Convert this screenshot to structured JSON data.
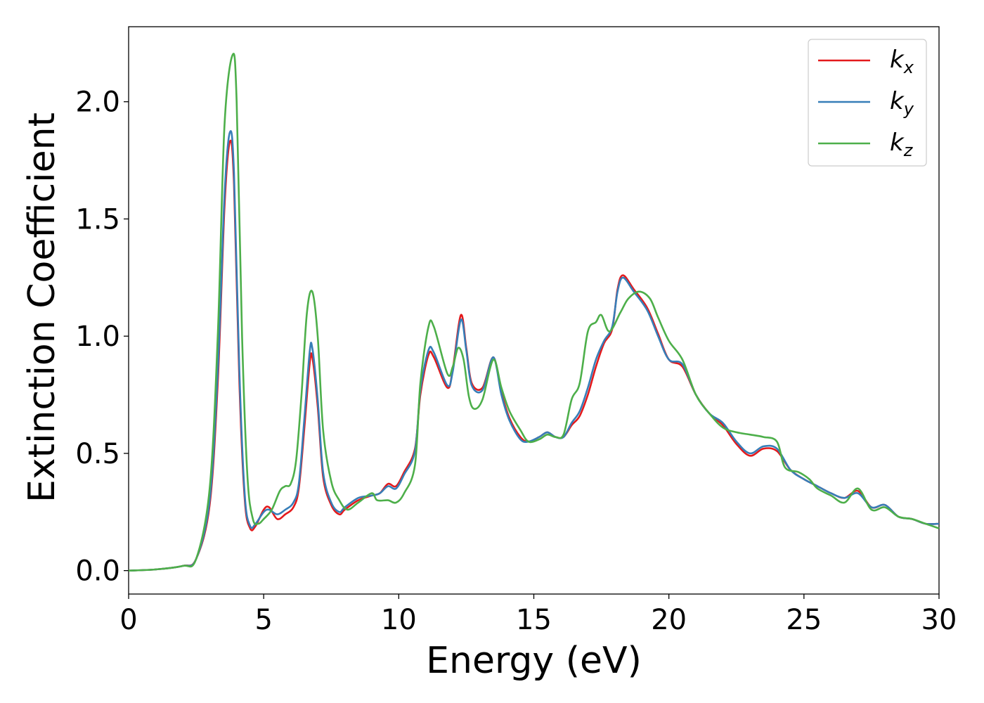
{
  "chart_data": {
    "type": "line",
    "title": "",
    "xlabel": "Energy (eV)",
    "ylabel": "Extinction Coefficient",
    "xlim": [
      0,
      30
    ],
    "ylim": [
      -0.1,
      2.32
    ],
    "xticks": [
      0,
      5,
      10,
      15,
      20,
      25,
      30
    ],
    "xtick_labels": [
      "0",
      "5",
      "10",
      "15",
      "20",
      "25",
      "30"
    ],
    "yticks": [
      0.0,
      0.5,
      1.0,
      1.5,
      2.0
    ],
    "ytick_labels": [
      "0.0",
      "0.5",
      "1.0",
      "1.5",
      "2.0"
    ],
    "grid": false,
    "legend_position": "top-right",
    "series": [
      {
        "name": "k",
        "subscript": "x",
        "color": "#e41a1c",
        "points": [
          [
            0,
            0
          ],
          [
            1,
            0.005
          ],
          [
            2,
            0.02
          ],
          [
            2.5,
            0.05
          ],
          [
            3,
            0.28
          ],
          [
            3.3,
            0.8
          ],
          [
            3.55,
            1.55
          ],
          [
            3.75,
            1.83
          ],
          [
            3.9,
            1.65
          ],
          [
            4.1,
            0.8
          ],
          [
            4.3,
            0.3
          ],
          [
            4.5,
            0.18
          ],
          [
            4.7,
            0.19
          ],
          [
            5.0,
            0.26
          ],
          [
            5.2,
            0.27
          ],
          [
            5.5,
            0.22
          ],
          [
            5.8,
            0.24
          ],
          [
            6.1,
            0.27
          ],
          [
            6.3,
            0.35
          ],
          [
            6.5,
            0.6
          ],
          [
            6.7,
            0.88
          ],
          [
            6.8,
            0.91
          ],
          [
            7.0,
            0.7
          ],
          [
            7.2,
            0.4
          ],
          [
            7.5,
            0.28
          ],
          [
            7.8,
            0.24
          ],
          [
            8.0,
            0.26
          ],
          [
            8.5,
            0.3
          ],
          [
            9.0,
            0.32
          ],
          [
            9.3,
            0.33
          ],
          [
            9.6,
            0.37
          ],
          [
            9.9,
            0.36
          ],
          [
            10.2,
            0.42
          ],
          [
            10.6,
            0.52
          ],
          [
            10.8,
            0.75
          ],
          [
            11.1,
            0.92
          ],
          [
            11.3,
            0.91
          ],
          [
            11.8,
            0.78
          ],
          [
            12.0,
            0.86
          ],
          [
            12.3,
            1.09
          ],
          [
            12.5,
            0.95
          ],
          [
            12.7,
            0.8
          ],
          [
            13.1,
            0.78
          ],
          [
            13.5,
            0.91
          ],
          [
            13.8,
            0.76
          ],
          [
            14.1,
            0.65
          ],
          [
            14.5,
            0.57
          ],
          [
            14.8,
            0.55
          ],
          [
            15.2,
            0.57
          ],
          [
            15.5,
            0.59
          ],
          [
            15.8,
            0.57
          ],
          [
            16.1,
            0.57
          ],
          [
            16.4,
            0.62
          ],
          [
            16.7,
            0.66
          ],
          [
            17.0,
            0.75
          ],
          [
            17.3,
            0.87
          ],
          [
            17.6,
            0.97
          ],
          [
            17.9,
            1.03
          ],
          [
            18.1,
            1.2
          ],
          [
            18.3,
            1.26
          ],
          [
            18.7,
            1.2
          ],
          [
            19.2,
            1.12
          ],
          [
            19.6,
            1.01
          ],
          [
            20.0,
            0.9
          ],
          [
            20.5,
            0.87
          ],
          [
            21.0,
            0.75
          ],
          [
            21.5,
            0.67
          ],
          [
            22.0,
            0.62
          ],
          [
            22.5,
            0.54
          ],
          [
            23.0,
            0.49
          ],
          [
            23.5,
            0.52
          ],
          [
            24.0,
            0.51
          ],
          [
            24.5,
            0.43
          ],
          [
            25.0,
            0.39
          ],
          [
            25.5,
            0.36
          ],
          [
            26.0,
            0.33
          ],
          [
            26.5,
            0.31
          ],
          [
            27.0,
            0.34
          ],
          [
            27.5,
            0.27
          ],
          [
            28.0,
            0.28
          ],
          [
            28.5,
            0.23
          ],
          [
            29.0,
            0.22
          ],
          [
            29.5,
            0.2
          ],
          [
            30,
            0.2
          ]
        ]
      },
      {
        "name": "k",
        "subscript": "y",
        "color": "#377eb8",
        "points": [
          [
            0,
            0
          ],
          [
            1,
            0.005
          ],
          [
            2,
            0.02
          ],
          [
            2.5,
            0.05
          ],
          [
            3,
            0.3
          ],
          [
            3.3,
            0.85
          ],
          [
            3.55,
            1.6
          ],
          [
            3.75,
            1.87
          ],
          [
            3.9,
            1.7
          ],
          [
            4.1,
            0.85
          ],
          [
            4.3,
            0.32
          ],
          [
            4.5,
            0.19
          ],
          [
            4.7,
            0.2
          ],
          [
            5.0,
            0.25
          ],
          [
            5.2,
            0.26
          ],
          [
            5.5,
            0.24
          ],
          [
            5.8,
            0.26
          ],
          [
            6.1,
            0.29
          ],
          [
            6.3,
            0.37
          ],
          [
            6.5,
            0.64
          ],
          [
            6.7,
            0.93
          ],
          [
            6.8,
            0.95
          ],
          [
            7.0,
            0.73
          ],
          [
            7.2,
            0.42
          ],
          [
            7.5,
            0.29
          ],
          [
            7.8,
            0.25
          ],
          [
            8.0,
            0.27
          ],
          [
            8.5,
            0.31
          ],
          [
            9.0,
            0.32
          ],
          [
            9.3,
            0.33
          ],
          [
            9.6,
            0.36
          ],
          [
            9.9,
            0.35
          ],
          [
            10.2,
            0.41
          ],
          [
            10.6,
            0.51
          ],
          [
            10.8,
            0.77
          ],
          [
            11.1,
            0.94
          ],
          [
            11.3,
            0.93
          ],
          [
            11.8,
            0.79
          ],
          [
            12.0,
            0.85
          ],
          [
            12.3,
            1.07
          ],
          [
            12.5,
            0.94
          ],
          [
            12.7,
            0.79
          ],
          [
            13.1,
            0.77
          ],
          [
            13.5,
            0.91
          ],
          [
            13.8,
            0.75
          ],
          [
            14.1,
            0.64
          ],
          [
            14.5,
            0.56
          ],
          [
            14.8,
            0.55
          ],
          [
            15.2,
            0.57
          ],
          [
            15.5,
            0.59
          ],
          [
            15.8,
            0.57
          ],
          [
            16.1,
            0.57
          ],
          [
            16.4,
            0.63
          ],
          [
            16.7,
            0.68
          ],
          [
            17.0,
            0.78
          ],
          [
            17.3,
            0.9
          ],
          [
            17.6,
            0.98
          ],
          [
            17.9,
            1.04
          ],
          [
            18.1,
            1.19
          ],
          [
            18.3,
            1.25
          ],
          [
            18.7,
            1.19
          ],
          [
            19.2,
            1.11
          ],
          [
            19.6,
            1.0
          ],
          [
            20.0,
            0.9
          ],
          [
            20.5,
            0.88
          ],
          [
            21.0,
            0.75
          ],
          [
            21.5,
            0.67
          ],
          [
            22.0,
            0.63
          ],
          [
            22.5,
            0.55
          ],
          [
            23.0,
            0.5
          ],
          [
            23.5,
            0.53
          ],
          [
            24.0,
            0.52
          ],
          [
            24.5,
            0.43
          ],
          [
            25.0,
            0.39
          ],
          [
            25.5,
            0.36
          ],
          [
            26.0,
            0.33
          ],
          [
            26.5,
            0.31
          ],
          [
            27.0,
            0.33
          ],
          [
            27.5,
            0.27
          ],
          [
            28.0,
            0.28
          ],
          [
            28.5,
            0.23
          ],
          [
            29.0,
            0.22
          ],
          [
            29.5,
            0.2
          ],
          [
            30,
            0.2
          ]
        ]
      },
      {
        "name": "k",
        "subscript": "z",
        "color": "#4daf4a",
        "points": [
          [
            0,
            0
          ],
          [
            1,
            0.005
          ],
          [
            2,
            0.02
          ],
          [
            2.5,
            0.05
          ],
          [
            3,
            0.35
          ],
          [
            3.3,
            1.0
          ],
          [
            3.55,
            1.9
          ],
          [
            3.85,
            2.2
          ],
          [
            4.0,
            2.0
          ],
          [
            4.2,
            1.0
          ],
          [
            4.4,
            0.4
          ],
          [
            4.6,
            0.22
          ],
          [
            4.8,
            0.2
          ],
          [
            5.0,
            0.22
          ],
          [
            5.3,
            0.26
          ],
          [
            5.6,
            0.34
          ],
          [
            5.8,
            0.36
          ],
          [
            6.0,
            0.37
          ],
          [
            6.2,
            0.47
          ],
          [
            6.4,
            0.75
          ],
          [
            6.6,
            1.1
          ],
          [
            6.8,
            1.19
          ],
          [
            7.0,
            1.0
          ],
          [
            7.2,
            0.6
          ],
          [
            7.5,
            0.38
          ],
          [
            7.8,
            0.3
          ],
          [
            8.1,
            0.26
          ],
          [
            8.5,
            0.29
          ],
          [
            9.0,
            0.33
          ],
          [
            9.2,
            0.3
          ],
          [
            9.6,
            0.3
          ],
          [
            9.9,
            0.29
          ],
          [
            10.2,
            0.33
          ],
          [
            10.6,
            0.45
          ],
          [
            10.8,
            0.8
          ],
          [
            11.1,
            1.04
          ],
          [
            11.3,
            1.04
          ],
          [
            11.8,
            0.84
          ],
          [
            12.0,
            0.87
          ],
          [
            12.2,
            0.95
          ],
          [
            12.4,
            0.9
          ],
          [
            12.6,
            0.74
          ],
          [
            12.8,
            0.69
          ],
          [
            13.1,
            0.73
          ],
          [
            13.5,
            0.9
          ],
          [
            13.8,
            0.78
          ],
          [
            14.1,
            0.68
          ],
          [
            14.5,
            0.6
          ],
          [
            14.8,
            0.55
          ],
          [
            15.2,
            0.56
          ],
          [
            15.5,
            0.58
          ],
          [
            15.8,
            0.57
          ],
          [
            16.1,
            0.58
          ],
          [
            16.4,
            0.73
          ],
          [
            16.7,
            0.8
          ],
          [
            17.0,
            1.02
          ],
          [
            17.3,
            1.06
          ],
          [
            17.5,
            1.09
          ],
          [
            17.8,
            1.02
          ],
          [
            18.2,
            1.1
          ],
          [
            18.5,
            1.16
          ],
          [
            18.9,
            1.19
          ],
          [
            19.3,
            1.16
          ],
          [
            19.6,
            1.08
          ],
          [
            20.0,
            0.98
          ],
          [
            20.5,
            0.9
          ],
          [
            21.0,
            0.75
          ],
          [
            21.5,
            0.67
          ],
          [
            22.0,
            0.61
          ],
          [
            22.5,
            0.59
          ],
          [
            23.0,
            0.58
          ],
          [
            23.5,
            0.57
          ],
          [
            24.0,
            0.55
          ],
          [
            24.3,
            0.44
          ],
          [
            24.8,
            0.42
          ],
          [
            25.2,
            0.39
          ],
          [
            25.5,
            0.35
          ],
          [
            26.0,
            0.32
          ],
          [
            26.5,
            0.29
          ],
          [
            27.0,
            0.35
          ],
          [
            27.5,
            0.26
          ],
          [
            28.0,
            0.27
          ],
          [
            28.5,
            0.23
          ],
          [
            29.0,
            0.22
          ],
          [
            29.5,
            0.2
          ],
          [
            30,
            0.18
          ]
        ]
      }
    ]
  }
}
